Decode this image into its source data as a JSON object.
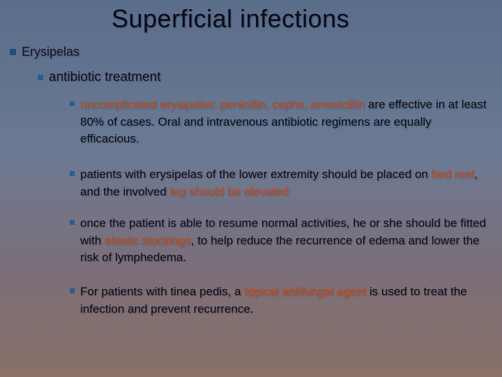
{
  "title": "Superficial infections",
  "level1": "Erysipelas",
  "level2": "antibiotic treatment",
  "bullets": [
    {
      "segments": [
        {
          "t": "uncomplicated erysipelas: penicillin, cephs, amoxicillin",
          "hl": true
        },
        {
          "t": " are effective in at least 80% of cases.",
          "hl": false
        },
        {
          "t": " Oral and intravenous antibiotic regimens are equally efficacious.",
          "hl": false
        }
      ]
    },
    {
      "segments": [
        {
          "t": "patients with erysipelas of the lower extremity should be placed on ",
          "hl": false
        },
        {
          "t": "bed rest",
          "hl": true
        },
        {
          "t": ", and the involved ",
          "hl": false
        },
        {
          "t": "leg should be elevated",
          "hl": true
        }
      ]
    },
    {
      "segments": [
        {
          "t": "once the patient is able to resume normal activities, he or she should be fitted with ",
          "hl": false
        },
        {
          "t": "elastic stockings",
          "hl": true
        },
        {
          "t": ", to help reduce the recurrence of edema and lower the risk of lymphedema.",
          "hl": false
        }
      ]
    },
    {
      "segments": [
        {
          "t": "For patients with tinea pedis, a ",
          "hl": false
        },
        {
          "t": "topical antifungal agent",
          "hl": true
        },
        {
          "t": " is used to treat the infection and prevent recurrence.",
          "hl": false
        }
      ]
    }
  ],
  "colors": {
    "highlight": "#c24a18",
    "bullet": "#1c4f7a"
  }
}
